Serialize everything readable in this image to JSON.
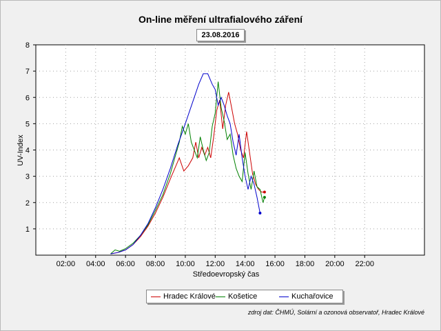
{
  "chart_data": {
    "type": "line",
    "title": "On-line měření ultrafialového záření",
    "subtitle": "23.08.2016",
    "xlabel": "Středoevropský čas",
    "ylabel": "UV-Index",
    "xlim": [
      0,
      26
    ],
    "ylim": [
      0,
      8
    ],
    "x_ticks": [
      2,
      4,
      6,
      8,
      10,
      12,
      14,
      16,
      18,
      20,
      22
    ],
    "x_tick_labels": [
      "02:00",
      "04:00",
      "06:00",
      "08:00",
      "10:00",
      "12:00",
      "14:00",
      "16:00",
      "18:00",
      "20:00",
      "22:00"
    ],
    "y_ticks": [
      1,
      2,
      3,
      4,
      5,
      6,
      7,
      8
    ],
    "y_tick_labels": [
      "1",
      "2",
      "3",
      "4",
      "5",
      "6",
      "7",
      "8"
    ],
    "grid": true,
    "legend_position": "bottom",
    "series": [
      {
        "name": "Hradec Králové",
        "color": "#cc0000",
        "x": [
          5.0,
          5.5,
          6.0,
          6.5,
          7.0,
          7.5,
          8.0,
          8.5,
          9.0,
          9.3,
          9.6,
          9.9,
          10.2,
          10.5,
          10.7,
          10.9,
          11.1,
          11.3,
          11.5,
          11.7,
          11.9,
          12.1,
          12.3,
          12.5,
          12.7,
          12.9,
          13.1,
          13.3,
          13.5,
          13.7,
          13.9,
          14.1,
          14.3,
          14.5,
          14.7,
          14.9,
          15.1,
          15.3
        ],
        "y": [
          0.05,
          0.1,
          0.2,
          0.4,
          0.7,
          1.1,
          1.6,
          2.2,
          2.9,
          3.3,
          3.7,
          3.2,
          3.4,
          3.7,
          4.3,
          3.7,
          4.1,
          3.8,
          4.1,
          3.7,
          4.5,
          5.5,
          5.9,
          4.8,
          5.7,
          6.2,
          5.6,
          5.0,
          4.6,
          4.0,
          3.7,
          4.7,
          3.9,
          3.1,
          2.7,
          2.5,
          2.4,
          2.4
        ]
      },
      {
        "name": "Košetice",
        "color": "#008000",
        "x": [
          5.0,
          5.3,
          5.6,
          6.0,
          6.5,
          7.0,
          7.5,
          8.0,
          8.5,
          9.0,
          9.3,
          9.6,
          9.8,
          10.0,
          10.2,
          10.4,
          10.6,
          10.8,
          11.0,
          11.2,
          11.4,
          11.6,
          11.8,
          12.0,
          12.2,
          12.4,
          12.6,
          12.8,
          13.0,
          13.2,
          13.4,
          13.6,
          13.8,
          14.0,
          14.2,
          14.4,
          14.6,
          14.8,
          15.0,
          15.2,
          15.3
        ],
        "y": [
          0.05,
          0.2,
          0.15,
          0.25,
          0.45,
          0.75,
          1.15,
          1.7,
          2.3,
          3.1,
          3.7,
          4.3,
          4.9,
          4.6,
          5.0,
          4.3,
          4.0,
          3.7,
          4.5,
          4.0,
          3.6,
          3.9,
          4.9,
          5.4,
          6.6,
          5.6,
          5.1,
          4.4,
          4.6,
          3.8,
          3.3,
          3.0,
          2.8,
          3.9,
          3.1,
          2.5,
          3.2,
          2.6,
          2.5,
          2.0,
          2.2
        ]
      },
      {
        "name": "Kuchařovice",
        "color": "#0000cc",
        "x": [
          5.0,
          5.5,
          6.0,
          6.5,
          7.0,
          7.5,
          8.0,
          8.5,
          9.0,
          9.5,
          10.0,
          10.3,
          10.6,
          10.9,
          11.2,
          11.5,
          11.8,
          12.0,
          12.2,
          12.4,
          12.6,
          12.8,
          13.0,
          13.2,
          13.4,
          13.6,
          13.8,
          14.0,
          14.2,
          14.4,
          14.6,
          14.8,
          15.0
        ],
        "y": [
          0.05,
          0.1,
          0.2,
          0.4,
          0.75,
          1.2,
          1.8,
          2.5,
          3.3,
          4.2,
          5.0,
          5.5,
          6.0,
          6.5,
          6.9,
          6.9,
          6.5,
          6.3,
          5.7,
          6.0,
          5.7,
          5.3,
          5.0,
          4.3,
          3.8,
          4.6,
          3.7,
          3.0,
          2.5,
          3.0,
          2.7,
          2.2,
          1.6
        ]
      }
    ]
  },
  "legend_items": [
    "Hradec Králové",
    "Košetice",
    "Kuchařovice"
  ],
  "source_note": "zdroj dat: ČHMÚ, Solární a ozonová observatoř, Hradec Králové"
}
